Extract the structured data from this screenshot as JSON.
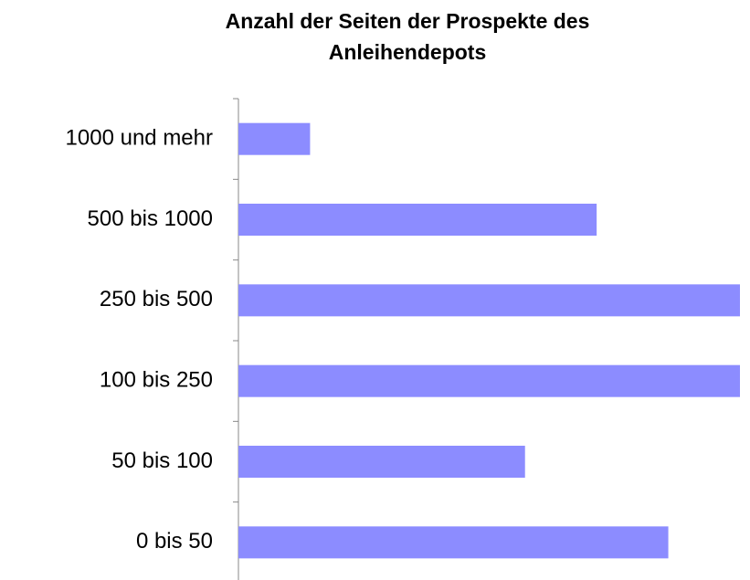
{
  "chart_data": {
    "type": "barh",
    "title": "Anzahl der Seiten der Prospekte des Anleihendepots",
    "categories": [
      "1000 und mehr",
      "500 bis 1000",
      "250 bis 500",
      "100 bis 250",
      "50 bis 100",
      "0 bis 50"
    ],
    "values": [
      1,
      5,
      7,
      7,
      4,
      6
    ],
    "color": "#8c8cff",
    "xlim": [
      0,
      7
    ]
  }
}
